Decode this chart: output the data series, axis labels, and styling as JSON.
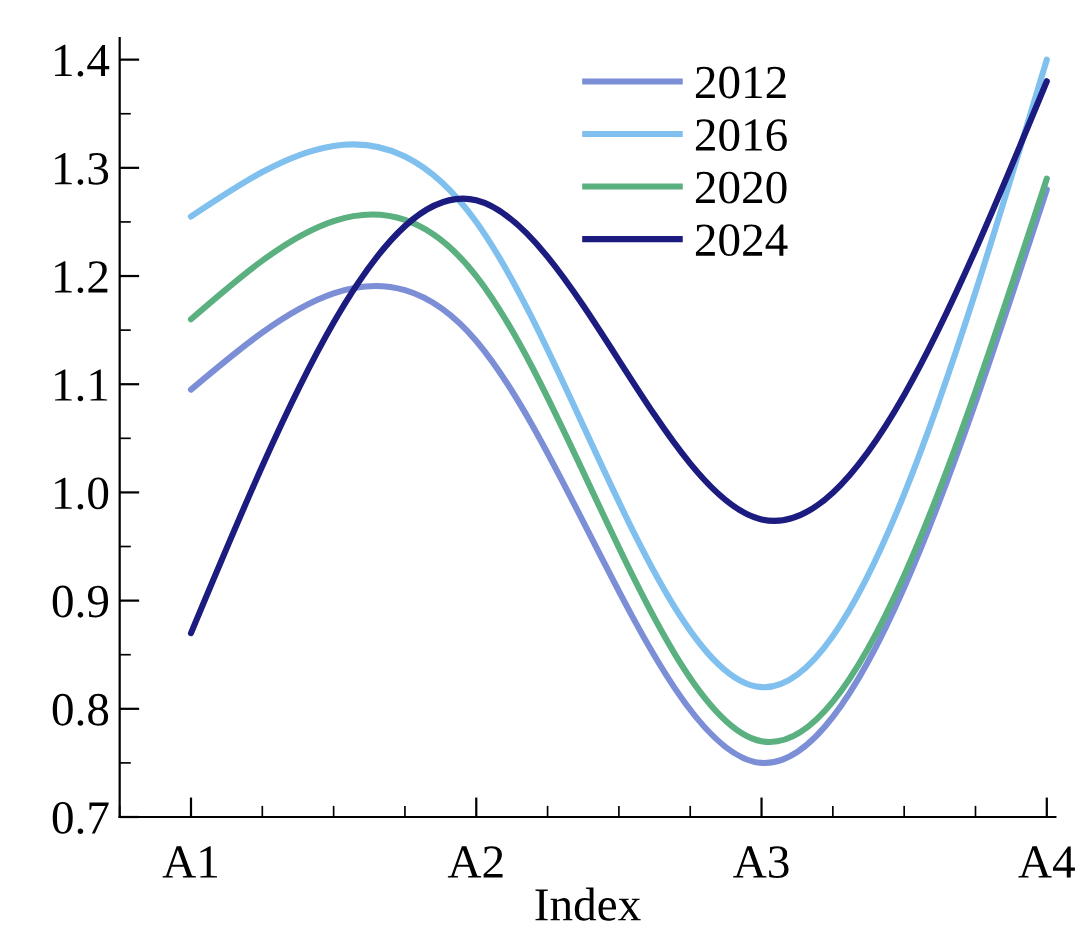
{
  "chart_data": {
    "type": "line",
    "xlabel": "Index",
    "categories": [
      "A1",
      "A2",
      "A3",
      "A4"
    ],
    "series": [
      {
        "name": "2012",
        "color": "#7b8ed6",
        "values": [
          1.095,
          1.14,
          0.75,
          1.28
        ]
      },
      {
        "name": "2016",
        "color": "#80c0ee",
        "values": [
          1.255,
          1.25,
          0.82,
          1.4
        ]
      },
      {
        "name": "2020",
        "color": "#5bb07f",
        "values": [
          1.16,
          1.2,
          0.77,
          1.29
        ]
      },
      {
        "name": "2024",
        "color": "#1b1b80",
        "values": [
          0.87,
          1.27,
          0.975,
          1.38
        ]
      }
    ],
    "ylim": [
      0.7,
      1.42
    ],
    "yticks": [
      0.7,
      0.8,
      0.9,
      {
        "value": 1,
        "label": "1.0"
      },
      1.1,
      1.2,
      1.3,
      1.4
    ],
    "grid": false,
    "legend": "top right",
    "marker": "none",
    "line_style": "solid"
  }
}
